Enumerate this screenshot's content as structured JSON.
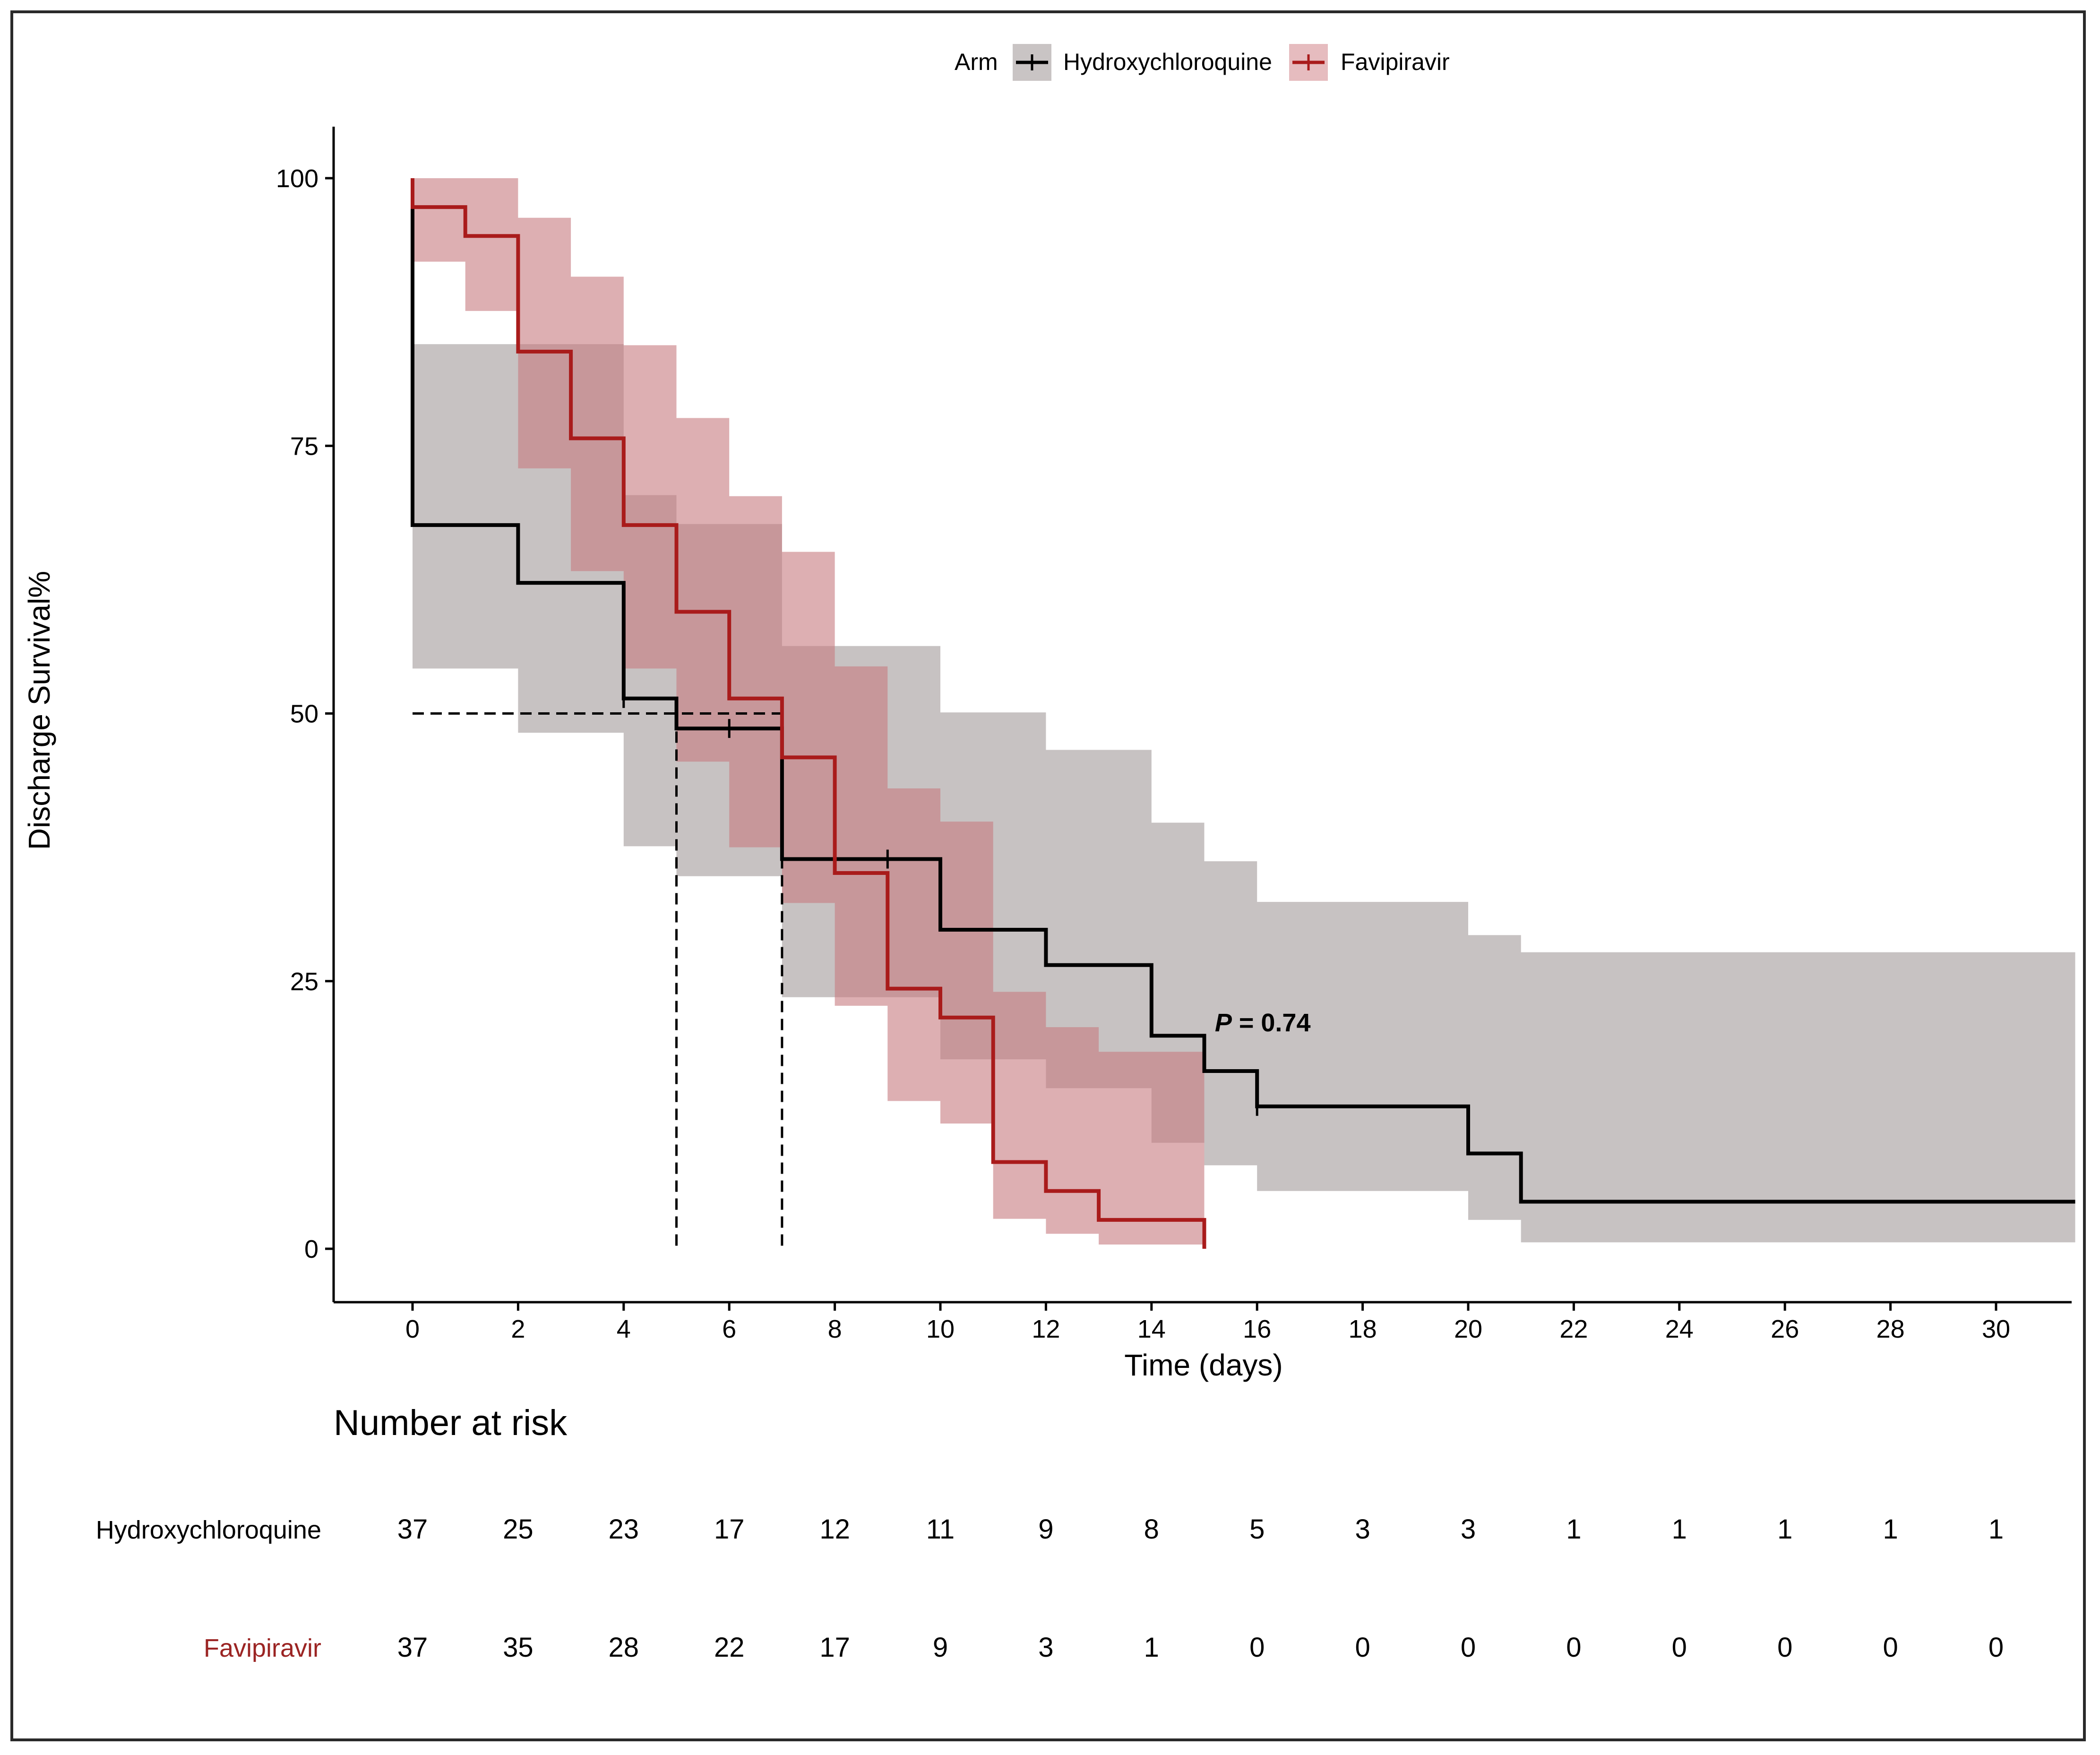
{
  "chart_data": {
    "type": "step",
    "title": "",
    "xlabel": "Time (days)",
    "ylabel": "Discharge Survival%",
    "xlim": [
      -1.5,
      31.5
    ],
    "ylim": [
      -5,
      105
    ],
    "xticks": [
      0,
      2,
      4,
      6,
      8,
      10,
      12,
      14,
      16,
      18,
      20,
      22,
      24,
      26,
      28,
      30
    ],
    "yticks": [
      0,
      25,
      50,
      75,
      100
    ],
    "grid": false,
    "legend": {
      "title": "Arm",
      "position": "top",
      "entries": [
        "Hydroxychloroquine",
        "Favipiravir"
      ]
    },
    "annotation": {
      "text_italic": "P",
      "text_rest": " = 0.74",
      "x": 15.2,
      "y": 20.3
    },
    "median_lines": {
      "y": 50,
      "x_values": [
        5,
        7
      ]
    },
    "series": [
      {
        "name": "Hydroxychloroquine",
        "color": "#000000",
        "band_color": "#a19a9a",
        "steps": [
          [
            0,
            100
          ],
          [
            0,
            67.6
          ],
          [
            2,
            62.2
          ],
          [
            4,
            51.4
          ],
          [
            5,
            48.6
          ],
          [
            7,
            36.4
          ],
          [
            10,
            29.8
          ],
          [
            12,
            26.5
          ],
          [
            14,
            19.9
          ],
          [
            15,
            16.6
          ],
          [
            16,
            13.3
          ],
          [
            20,
            8.9
          ],
          [
            21,
            4.4
          ],
          [
            31.5,
            4.4
          ]
        ],
        "band": [
          [
            0,
            92.3,
            54.2
          ],
          [
            0,
            84.5,
            54.2
          ],
          [
            2,
            84.5,
            48.2
          ],
          [
            4,
            70.4,
            37.6
          ],
          [
            5,
            67.7,
            34.8
          ],
          [
            7,
            56.3,
            23.5
          ],
          [
            10,
            50.1,
            17.7
          ],
          [
            12,
            46.6,
            15.0
          ],
          [
            14,
            39.8,
            9.9
          ],
          [
            15,
            36.2,
            7.8
          ],
          [
            16,
            32.4,
            5.4
          ],
          [
            20,
            29.3,
            2.7
          ],
          [
            21,
            27.7,
            0.6
          ],
          [
            31.5,
            27.7,
            0.6
          ]
        ],
        "censors": [
          [
            4,
            51.4
          ],
          [
            6,
            48.6
          ],
          [
            9,
            36.4
          ],
          [
            16,
            13.3
          ]
        ]
      },
      {
        "name": "Favipiravir",
        "color": "#a91b1b",
        "band_color": "#c77a7f",
        "steps": [
          [
            0,
            100
          ],
          [
            0,
            97.3
          ],
          [
            1,
            94.6
          ],
          [
            2,
            83.8
          ],
          [
            3,
            75.7
          ],
          [
            4,
            67.6
          ],
          [
            5,
            59.5
          ],
          [
            6,
            51.4
          ],
          [
            7,
            45.9
          ],
          [
            8,
            35.1
          ],
          [
            9,
            24.3
          ],
          [
            10,
            21.6
          ],
          [
            11,
            8.1
          ],
          [
            12,
            5.4
          ],
          [
            13,
            2.7
          ],
          [
            15,
            2.7
          ],
          [
            15,
            0
          ]
        ],
        "band": [
          [
            0,
            100,
            92.2
          ],
          [
            1,
            100,
            87.6
          ],
          [
            2,
            96.3,
            72.9
          ],
          [
            3,
            90.8,
            63.3
          ],
          [
            4,
            84.4,
            54.2
          ],
          [
            5,
            77.6,
            45.5
          ],
          [
            6,
            70.3,
            37.5
          ],
          [
            7,
            65.1,
            32.3
          ],
          [
            8,
            54.4,
            22.7
          ],
          [
            9,
            43.0,
            13.8
          ],
          [
            10,
            39.9,
            11.7
          ],
          [
            11,
            24.0,
            2.8
          ],
          [
            12,
            20.7,
            1.4
          ],
          [
            13,
            18.4,
            0.4
          ],
          [
            15,
            18.4,
            0.4
          ]
        ],
        "censors": []
      }
    ],
    "risk_table": {
      "title": "Number at risk",
      "times": [
        0,
        2,
        4,
        6,
        8,
        10,
        12,
        14,
        16,
        18,
        20,
        22,
        24,
        26,
        28,
        30
      ],
      "rows": [
        {
          "name": "Hydroxychloroquine",
          "color": "#000000",
          "values": [
            37,
            25,
            23,
            17,
            12,
            11,
            9,
            8,
            5,
            3,
            3,
            1,
            1,
            1,
            1,
            1
          ]
        },
        {
          "name": "Favipiravir",
          "color": "#9b2423",
          "values": [
            37,
            35,
            28,
            22,
            17,
            9,
            3,
            1,
            0,
            0,
            0,
            0,
            0,
            0,
            0,
            0
          ]
        }
      ]
    }
  }
}
